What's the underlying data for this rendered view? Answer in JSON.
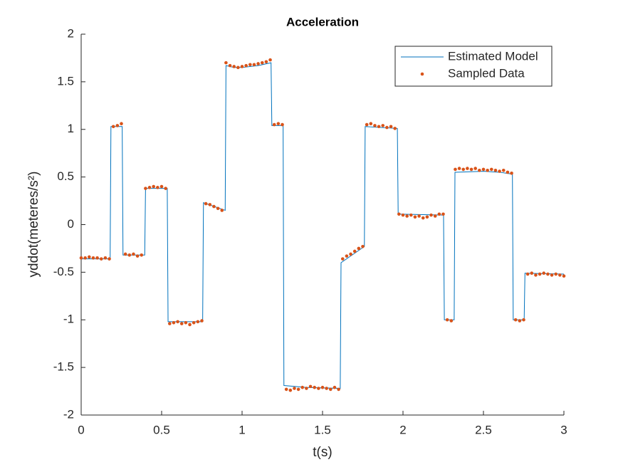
{
  "chart_data": {
    "type": "line",
    "title": "Acceleration",
    "xlabel": "t(s)",
    "ylabel": "yddot(meteres/s²)",
    "xlim": [
      0,
      3
    ],
    "ylim": [
      -2,
      2
    ],
    "xticks": [
      0,
      0.5,
      1,
      1.5,
      2,
      2.5,
      3
    ],
    "yticks": [
      -2,
      -1.5,
      -1,
      -0.5,
      0,
      0.5,
      1,
      1.5,
      2
    ],
    "grid": false,
    "legend": "northeast",
    "series": [
      {
        "name": "Estimated Model",
        "color": "#0072bd",
        "mode": "line",
        "x": [
          0,
          0.18,
          0.185,
          0.255,
          0.26,
          0.395,
          0.4,
          0.535,
          0.54,
          0.755,
          0.76,
          0.895,
          0.9,
          0.95,
          1.0,
          1.1,
          1.18,
          1.185,
          1.255,
          1.26,
          1.4,
          1.61,
          1.615,
          1.76,
          1.765,
          1.965,
          1.97,
          2.252,
          2.257,
          2.318,
          2.323,
          2.5,
          2.6,
          2.68,
          2.685,
          2.753,
          2.758,
          3.0
        ],
        "values": [
          -0.36,
          -0.36,
          1.03,
          1.03,
          -0.32,
          -0.32,
          0.38,
          0.38,
          -1.02,
          -1.02,
          0.23,
          0.15,
          1.67,
          1.65,
          1.65,
          1.67,
          1.7,
          1.04,
          1.04,
          -1.69,
          -1.71,
          -1.72,
          -0.4,
          -0.23,
          1.03,
          1.01,
          0.11,
          0.1,
          -1.0,
          -1.0,
          0.55,
          0.56,
          0.55,
          0.53,
          -1.0,
          -1.0,
          -0.51,
          -0.52
        ]
      },
      {
        "name": "Sampled Data",
        "color": "#d95319",
        "mode": "markers",
        "x": [
          0,
          0.025,
          0.05,
          0.075,
          0.1,
          0.125,
          0.15,
          0.175,
          0.2,
          0.225,
          0.25,
          0.275,
          0.3,
          0.325,
          0.35,
          0.375,
          0.4,
          0.425,
          0.45,
          0.475,
          0.5,
          0.525,
          0.55,
          0.575,
          0.6,
          0.625,
          0.65,
          0.675,
          0.7,
          0.725,
          0.75,
          0.775,
          0.8,
          0.825,
          0.85,
          0.875,
          0.9,
          0.925,
          0.95,
          0.975,
          1.0,
          1.025,
          1.05,
          1.075,
          1.1,
          1.125,
          1.15,
          1.175,
          1.2,
          1.225,
          1.25,
          1.275,
          1.3,
          1.325,
          1.35,
          1.375,
          1.4,
          1.425,
          1.45,
          1.475,
          1.5,
          1.525,
          1.55,
          1.575,
          1.6,
          1.625,
          1.65,
          1.675,
          1.7,
          1.725,
          1.75,
          1.775,
          1.8,
          1.825,
          1.85,
          1.875,
          1.9,
          1.925,
          1.95,
          1.975,
          2.0,
          2.025,
          2.05,
          2.075,
          2.1,
          2.125,
          2.15,
          2.175,
          2.2,
          2.225,
          2.25,
          2.275,
          2.3,
          2.325,
          2.35,
          2.375,
          2.4,
          2.425,
          2.45,
          2.475,
          2.5,
          2.525,
          2.55,
          2.575,
          2.6,
          2.625,
          2.65,
          2.675,
          2.7,
          2.725,
          2.75,
          2.775,
          2.8,
          2.825,
          2.85,
          2.875,
          2.9,
          2.925,
          2.95,
          2.975,
          3.0
        ],
        "values": [
          -0.35,
          -0.35,
          -0.34,
          -0.35,
          -0.35,
          -0.36,
          -0.35,
          -0.36,
          1.03,
          1.04,
          1.06,
          -0.31,
          -0.32,
          -0.31,
          -0.33,
          -0.32,
          0.38,
          0.39,
          0.4,
          0.39,
          0.4,
          0.38,
          -1.04,
          -1.03,
          -1.02,
          -1.04,
          -1.03,
          -1.05,
          -1.03,
          -1.02,
          -1.01,
          0.22,
          0.21,
          0.19,
          0.17,
          0.15,
          1.7,
          1.67,
          1.66,
          1.65,
          1.66,
          1.67,
          1.68,
          1.68,
          1.69,
          1.7,
          1.71,
          1.73,
          1.05,
          1.06,
          1.05,
          -1.73,
          -1.74,
          -1.72,
          -1.73,
          -1.71,
          -1.72,
          -1.7,
          -1.71,
          -1.72,
          -1.71,
          -1.72,
          -1.73,
          -1.71,
          -1.73,
          -0.36,
          -0.33,
          -0.31,
          -0.28,
          -0.25,
          -0.23,
          1.05,
          1.06,
          1.04,
          1.03,
          1.04,
          1.02,
          1.03,
          1.01,
          0.11,
          0.1,
          0.09,
          0.1,
          0.08,
          0.09,
          0.07,
          0.08,
          0.1,
          0.09,
          0.11,
          0.11,
          -1.0,
          -1.01,
          0.58,
          0.59,
          0.58,
          0.59,
          0.58,
          0.59,
          0.57,
          0.58,
          0.57,
          0.58,
          0.57,
          0.56,
          0.57,
          0.55,
          0.54,
          -1.0,
          -1.01,
          -1.0,
          -0.52,
          -0.51,
          -0.53,
          -0.52,
          -0.51,
          -0.52,
          -0.53,
          -0.52,
          -0.53,
          -0.54
        ]
      }
    ]
  }
}
